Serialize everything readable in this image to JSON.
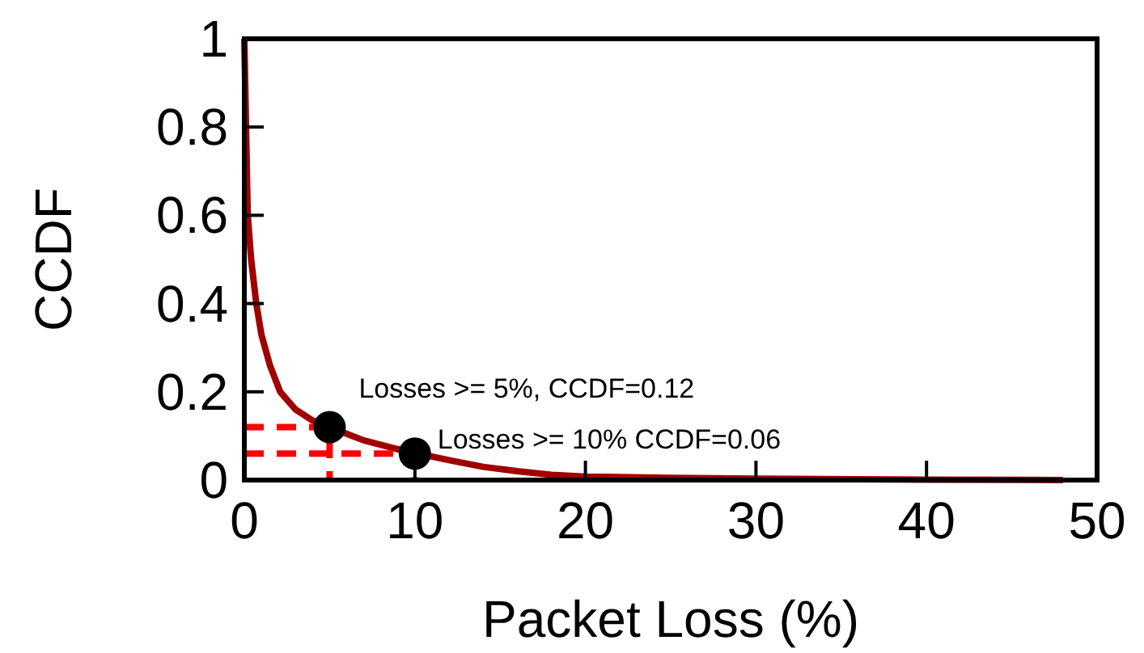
{
  "chart_data": {
    "type": "line",
    "xlabel": "Packet Loss (%)",
    "ylabel": "CCDF",
    "xlim": [
      0,
      50
    ],
    "ylim": [
      0,
      1
    ],
    "xticks": [
      0,
      10,
      20,
      30,
      40,
      50
    ],
    "yticks": [
      0,
      0.2,
      0.4,
      0.6,
      0.8,
      1
    ],
    "grid": false,
    "series": [
      {
        "color": "#a00000",
        "x": [
          0,
          0.05,
          0.1,
          0.2,
          0.4,
          0.7,
          1,
          1.5,
          2.1,
          3,
          4,
          6,
          7,
          8,
          9,
          12,
          14,
          16,
          18,
          20,
          25,
          30,
          40,
          48
        ],
        "values": [
          1,
          0.9,
          0.8,
          0.6,
          0.5,
          0.4,
          0.33,
          0.26,
          0.2,
          0.16,
          0.135,
          0.105,
          0.09,
          0.08,
          0.07,
          0.045,
          0.03,
          0.02,
          0.012,
          0.008,
          0.005,
          0.003,
          0.001,
          0
        ]
      },
      {
        "type": "line",
        "line_style": "dashed",
        "color": "#ff0000",
        "x": [
          0,
          5,
          5
        ],
        "values": [
          0.12,
          0.12,
          0
        ]
      },
      {
        "type": "line",
        "line_style": "dashed",
        "color": "#ff0000",
        "x": [
          0,
          10,
          10
        ],
        "values": [
          0.06,
          0.06,
          0
        ]
      },
      {
        "type": "scatter",
        "marker": "circle",
        "color": "#000000",
        "x": [
          5,
          10
        ],
        "values": [
          0.12,
          0.06
        ]
      }
    ],
    "annotations": [
      {
        "text": "Losses >= 5%, CCDF=0.12",
        "x": 5,
        "y": 0.12
      },
      {
        "text": "Losses >= 10% CCDF=0.06",
        "x": 10,
        "y": 0.06
      }
    ]
  }
}
